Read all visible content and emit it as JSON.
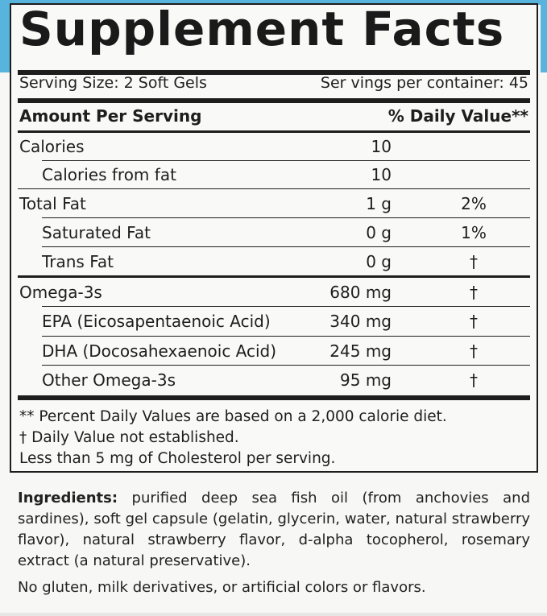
{
  "panel": {
    "title": "Supplement Facts",
    "serving_size": "Serving Size: 2 Soft Gels",
    "servings_per_container": "Ser vings per container: 45"
  },
  "table_header": {
    "amount_per_serving": "Amount Per Serving",
    "daily_value": "% Daily Value**"
  },
  "rows": [
    {
      "label": "Calories",
      "amount": "10",
      "dv": ""
    },
    {
      "label": "Calories from fat",
      "amount": "10",
      "dv": ""
    },
    {
      "label": "Total Fat",
      "amount": "1 g",
      "dv": "2%"
    },
    {
      "label": "Saturated Fat",
      "amount": "0 g",
      "dv": "1%"
    },
    {
      "label": "Trans Fat",
      "amount": "0 g",
      "dv": "†"
    },
    {
      "label": "Omega-3s",
      "amount": "680 mg",
      "dv": "†"
    },
    {
      "label": "EPA (Eicosapentaenoic Acid)",
      "amount": "340 mg",
      "dv": "†"
    },
    {
      "label": "DHA (Docosahexaenoic Acid)",
      "amount": "245 mg",
      "dv": "†"
    },
    {
      "label": "Other Omega-3s",
      "amount": "95 mg",
      "dv": "†"
    }
  ],
  "footnotes": {
    "daily_values": "** Percent Daily Values are based on a 2,000 calorie diet.",
    "not_established": "†  Daily Value not established.",
    "cholesterol": "Less than 5 mg of Cholesterol per serving."
  },
  "ingredients": {
    "label": "Ingredients:",
    "text": " purified deep sea fish oil (from anchovies and sardines), soft gel capsule (gelatin, glycerin, water, natural strawberry flavor), natural strawberry flavor, d-alpha tocopherol, rosemary extract (a natural preservative)."
  },
  "allergen_statement": "No gluten, milk derivatives, or artificial colors or flavors.",
  "colors": {
    "accent_blue": "#58b4dd",
    "ink": "#1e1e1e",
    "background": "#f7f7f5"
  }
}
